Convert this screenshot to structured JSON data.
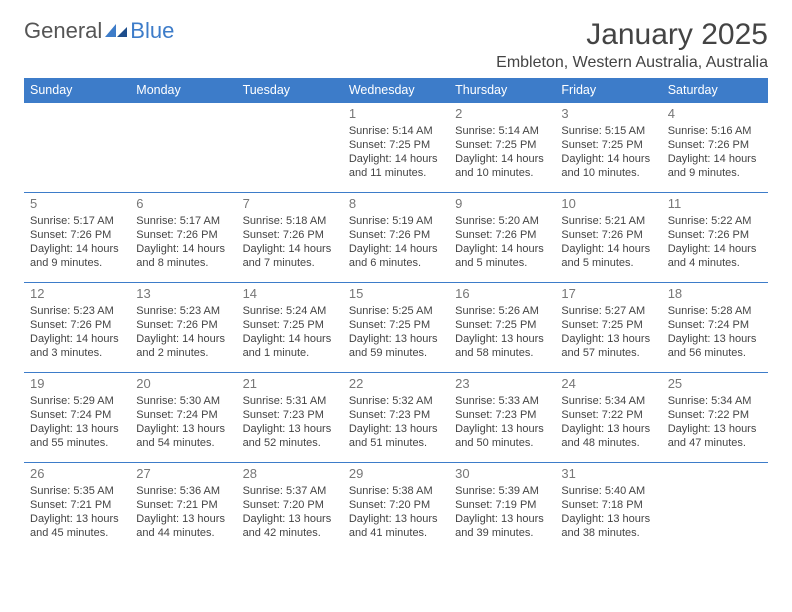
{
  "logo": {
    "general": "General",
    "blue": "Blue"
  },
  "header": {
    "title": "January 2025",
    "location": "Embleton, Western Australia, Australia"
  },
  "colors": {
    "accent": "#3d7cc9",
    "text": "#444444",
    "daynum": "#777777",
    "bg": "#ffffff"
  },
  "dayHeaders": [
    "Sunday",
    "Monday",
    "Tuesday",
    "Wednesday",
    "Thursday",
    "Friday",
    "Saturday"
  ],
  "weeks": [
    [
      null,
      null,
      null,
      {
        "n": "1",
        "sr": "Sunrise: 5:14 AM",
        "ss": "Sunset: 7:25 PM",
        "dl": "Daylight: 14 hours and 11 minutes."
      },
      {
        "n": "2",
        "sr": "Sunrise: 5:14 AM",
        "ss": "Sunset: 7:25 PM",
        "dl": "Daylight: 14 hours and 10 minutes."
      },
      {
        "n": "3",
        "sr": "Sunrise: 5:15 AM",
        "ss": "Sunset: 7:25 PM",
        "dl": "Daylight: 14 hours and 10 minutes."
      },
      {
        "n": "4",
        "sr": "Sunrise: 5:16 AM",
        "ss": "Sunset: 7:26 PM",
        "dl": "Daylight: 14 hours and 9 minutes."
      }
    ],
    [
      {
        "n": "5",
        "sr": "Sunrise: 5:17 AM",
        "ss": "Sunset: 7:26 PM",
        "dl": "Daylight: 14 hours and 9 minutes."
      },
      {
        "n": "6",
        "sr": "Sunrise: 5:17 AM",
        "ss": "Sunset: 7:26 PM",
        "dl": "Daylight: 14 hours and 8 minutes."
      },
      {
        "n": "7",
        "sr": "Sunrise: 5:18 AM",
        "ss": "Sunset: 7:26 PM",
        "dl": "Daylight: 14 hours and 7 minutes."
      },
      {
        "n": "8",
        "sr": "Sunrise: 5:19 AM",
        "ss": "Sunset: 7:26 PM",
        "dl": "Daylight: 14 hours and 6 minutes."
      },
      {
        "n": "9",
        "sr": "Sunrise: 5:20 AM",
        "ss": "Sunset: 7:26 PM",
        "dl": "Daylight: 14 hours and 5 minutes."
      },
      {
        "n": "10",
        "sr": "Sunrise: 5:21 AM",
        "ss": "Sunset: 7:26 PM",
        "dl": "Daylight: 14 hours and 5 minutes."
      },
      {
        "n": "11",
        "sr": "Sunrise: 5:22 AM",
        "ss": "Sunset: 7:26 PM",
        "dl": "Daylight: 14 hours and 4 minutes."
      }
    ],
    [
      {
        "n": "12",
        "sr": "Sunrise: 5:23 AM",
        "ss": "Sunset: 7:26 PM",
        "dl": "Daylight: 14 hours and 3 minutes."
      },
      {
        "n": "13",
        "sr": "Sunrise: 5:23 AM",
        "ss": "Sunset: 7:26 PM",
        "dl": "Daylight: 14 hours and 2 minutes."
      },
      {
        "n": "14",
        "sr": "Sunrise: 5:24 AM",
        "ss": "Sunset: 7:25 PM",
        "dl": "Daylight: 14 hours and 1 minute."
      },
      {
        "n": "15",
        "sr": "Sunrise: 5:25 AM",
        "ss": "Sunset: 7:25 PM",
        "dl": "Daylight: 13 hours and 59 minutes."
      },
      {
        "n": "16",
        "sr": "Sunrise: 5:26 AM",
        "ss": "Sunset: 7:25 PM",
        "dl": "Daylight: 13 hours and 58 minutes."
      },
      {
        "n": "17",
        "sr": "Sunrise: 5:27 AM",
        "ss": "Sunset: 7:25 PM",
        "dl": "Daylight: 13 hours and 57 minutes."
      },
      {
        "n": "18",
        "sr": "Sunrise: 5:28 AM",
        "ss": "Sunset: 7:24 PM",
        "dl": "Daylight: 13 hours and 56 minutes."
      }
    ],
    [
      {
        "n": "19",
        "sr": "Sunrise: 5:29 AM",
        "ss": "Sunset: 7:24 PM",
        "dl": "Daylight: 13 hours and 55 minutes."
      },
      {
        "n": "20",
        "sr": "Sunrise: 5:30 AM",
        "ss": "Sunset: 7:24 PM",
        "dl": "Daylight: 13 hours and 54 minutes."
      },
      {
        "n": "21",
        "sr": "Sunrise: 5:31 AM",
        "ss": "Sunset: 7:23 PM",
        "dl": "Daylight: 13 hours and 52 minutes."
      },
      {
        "n": "22",
        "sr": "Sunrise: 5:32 AM",
        "ss": "Sunset: 7:23 PM",
        "dl": "Daylight: 13 hours and 51 minutes."
      },
      {
        "n": "23",
        "sr": "Sunrise: 5:33 AM",
        "ss": "Sunset: 7:23 PM",
        "dl": "Daylight: 13 hours and 50 minutes."
      },
      {
        "n": "24",
        "sr": "Sunrise: 5:34 AM",
        "ss": "Sunset: 7:22 PM",
        "dl": "Daylight: 13 hours and 48 minutes."
      },
      {
        "n": "25",
        "sr": "Sunrise: 5:34 AM",
        "ss": "Sunset: 7:22 PM",
        "dl": "Daylight: 13 hours and 47 minutes."
      }
    ],
    [
      {
        "n": "26",
        "sr": "Sunrise: 5:35 AM",
        "ss": "Sunset: 7:21 PM",
        "dl": "Daylight: 13 hours and 45 minutes."
      },
      {
        "n": "27",
        "sr": "Sunrise: 5:36 AM",
        "ss": "Sunset: 7:21 PM",
        "dl": "Daylight: 13 hours and 44 minutes."
      },
      {
        "n": "28",
        "sr": "Sunrise: 5:37 AM",
        "ss": "Sunset: 7:20 PM",
        "dl": "Daylight: 13 hours and 42 minutes."
      },
      {
        "n": "29",
        "sr": "Sunrise: 5:38 AM",
        "ss": "Sunset: 7:20 PM",
        "dl": "Daylight: 13 hours and 41 minutes."
      },
      {
        "n": "30",
        "sr": "Sunrise: 5:39 AM",
        "ss": "Sunset: 7:19 PM",
        "dl": "Daylight: 13 hours and 39 minutes."
      },
      {
        "n": "31",
        "sr": "Sunrise: 5:40 AM",
        "ss": "Sunset: 7:18 PM",
        "dl": "Daylight: 13 hours and 38 minutes."
      },
      null
    ]
  ]
}
